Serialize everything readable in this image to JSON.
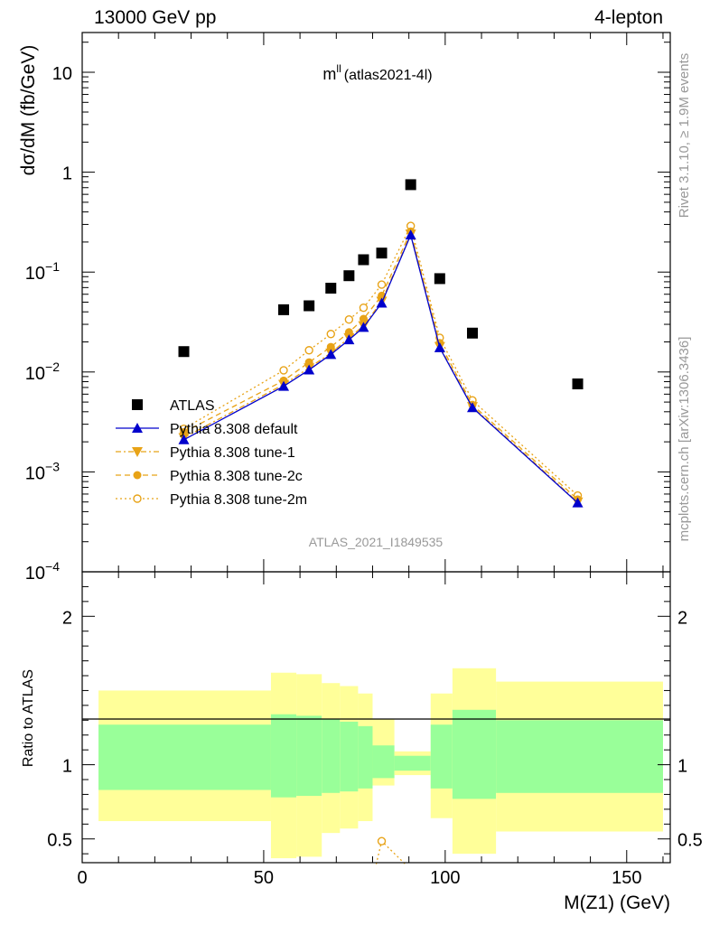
{
  "header": {
    "left": "13000 GeV pp",
    "right": "4-lepton"
  },
  "title": {
    "main": "m",
    "sup": "ll",
    "tag": "(atlas2021-4l)"
  },
  "side_labels": {
    "rivet": "Rivet 3.1.10, ≥ 1.9M events",
    "mcplots": "mcplots.cern.ch [arXiv:1306.3436]"
  },
  "analysis_id": "ATLAS_2021_I1849535",
  "colors": {
    "atlas": "#000000",
    "default": "#0000cc",
    "tune": "#e8a317",
    "band_inner": "#99ff99",
    "band_outer": "#ffff99"
  },
  "chart_data": [
    {
      "type": "line",
      "ylabel": "dσ/dM (fb/GeV)",
      "yscale": "log",
      "ylim": [
        0.0001,
        25
      ],
      "xlim": [
        0,
        162
      ],
      "yticks": [
        {
          "v": 0.0001,
          "base": "10",
          "exp": "−4"
        },
        {
          "v": 0.001,
          "base": "10",
          "exp": "−3"
        },
        {
          "v": 0.01,
          "base": "10",
          "exp": "−2"
        },
        {
          "v": 0.1,
          "base": "10",
          "exp": "−1"
        },
        {
          "v": 1,
          "base": "1",
          "exp": ""
        },
        {
          "v": 10,
          "base": "10",
          "exp": ""
        }
      ],
      "legend_position": "left",
      "series": [
        {
          "name": "ATLAS",
          "marker": "square",
          "x": [
            28,
            55.5,
            62.5,
            68.5,
            73.5,
            77.5,
            82.5,
            90.5,
            98.5,
            107.5,
            136.5
          ],
          "values": [
            0.016,
            0.042,
            0.046,
            0.069,
            0.092,
            0.133,
            0.155,
            0.75,
            0.086,
            0.0245,
            0.0076
          ]
        },
        {
          "name": "Pythia 8.308 default",
          "marker": "triangle-up",
          "line": "solid",
          "x": [
            28,
            55.5,
            62.5,
            68.5,
            73.5,
            77.5,
            82.5,
            90.5,
            98.5,
            107.5,
            136.5
          ],
          "values": [
            0.0021,
            0.0072,
            0.0105,
            0.015,
            0.021,
            0.028,
            0.049,
            0.235,
            0.0175,
            0.0044,
            0.00049
          ]
        },
        {
          "name": "Pythia 8.308 tune-1",
          "marker": "triangle-down",
          "line": "dashdot",
          "x": [
            28,
            55.5,
            62.5,
            68.5,
            73.5,
            77.5,
            82.5,
            90.5,
            98.5,
            107.5,
            136.5
          ],
          "values": [
            0.0022,
            0.0075,
            0.011,
            0.0155,
            0.022,
            0.029,
            0.051,
            0.24,
            0.018,
            0.0045,
            0.0005
          ]
        },
        {
          "name": "Pythia 8.308 tune-2c",
          "marker": "circle",
          "line": "dashed",
          "x": [
            28,
            55.5,
            62.5,
            68.5,
            73.5,
            77.5,
            82.5,
            90.5,
            98.5,
            107.5,
            136.5
          ],
          "values": [
            0.0025,
            0.0082,
            0.0125,
            0.0178,
            0.025,
            0.034,
            0.058,
            0.255,
            0.0195,
            0.0047,
            0.00053
          ]
        },
        {
          "name": "Pythia 8.308 tune-2m",
          "marker": "open-circle",
          "line": "dotted",
          "x": [
            28,
            55.5,
            62.5,
            68.5,
            73.5,
            77.5,
            82.5,
            90.5,
            98.5,
            107.5,
            136.5
          ],
          "values": [
            0.0027,
            0.0104,
            0.0165,
            0.024,
            0.0335,
            0.044,
            0.075,
            0.29,
            0.022,
            0.0052,
            0.00058
          ]
        }
      ]
    },
    {
      "type": "area",
      "xlabel": "M(Z1) (GeV)",
      "ylabel": "Ratio to ATLAS",
      "xlim": [
        0,
        162
      ],
      "ylim": [
        0.34,
        2.3
      ],
      "xticks": [
        {
          "v": 0,
          "label": "0"
        },
        {
          "v": 50,
          "label": "50"
        },
        {
          "v": 100,
          "label": "100"
        },
        {
          "v": 150,
          "label": "150"
        }
      ],
      "yticks": [
        {
          "v": 0.5,
          "label": "0.5"
        },
        {
          "v": 1,
          "label": "1"
        },
        {
          "v": 2,
          "label": "2"
        }
      ],
      "bins": [
        {
          "x0": 4.5,
          "x1": 52,
          "inner": [
            0.83,
            1.27
          ],
          "outer": [
            0.62,
            1.5
          ]
        },
        {
          "x0": 52,
          "x1": 59,
          "inner": [
            0.78,
            1.34
          ],
          "outer": [
            0.37,
            1.62
          ]
        },
        {
          "x0": 59,
          "x1": 66,
          "inner": [
            0.79,
            1.33
          ],
          "outer": [
            0.38,
            1.61
          ]
        },
        {
          "x0": 66,
          "x1": 71,
          "inner": [
            0.81,
            1.31
          ],
          "outer": [
            0.54,
            1.55
          ]
        },
        {
          "x0": 71,
          "x1": 76,
          "inner": [
            0.82,
            1.29
          ],
          "outer": [
            0.57,
            1.53
          ]
        },
        {
          "x0": 76,
          "x1": 80,
          "inner": [
            0.84,
            1.26
          ],
          "outer": [
            0.62,
            1.48
          ]
        },
        {
          "x0": 80,
          "x1": 86,
          "inner": [
            0.91,
            1.13
          ],
          "outer": [
            0.86,
            1.31
          ]
        },
        {
          "x0": 86,
          "x1": 96,
          "inner": [
            0.96,
            1.06
          ],
          "outer": [
            0.93,
            1.09
          ]
        },
        {
          "x0": 96,
          "x1": 102,
          "inner": [
            0.84,
            1.27
          ],
          "outer": [
            0.64,
            1.48
          ]
        },
        {
          "x0": 102,
          "x1": 114,
          "inner": [
            0.77,
            1.37
          ],
          "outer": [
            0.4,
            1.65
          ]
        },
        {
          "x0": 114,
          "x1": 160,
          "inner": [
            0.81,
            1.3
          ],
          "outer": [
            0.55,
            1.56
          ]
        }
      ],
      "ratio_points": {
        "name": "Pythia 8.308 tune-2m",
        "x": [
          81,
          82.5,
          89
        ],
        "values": [
          0.33,
          0.485,
          0.33
        ]
      }
    }
  ]
}
